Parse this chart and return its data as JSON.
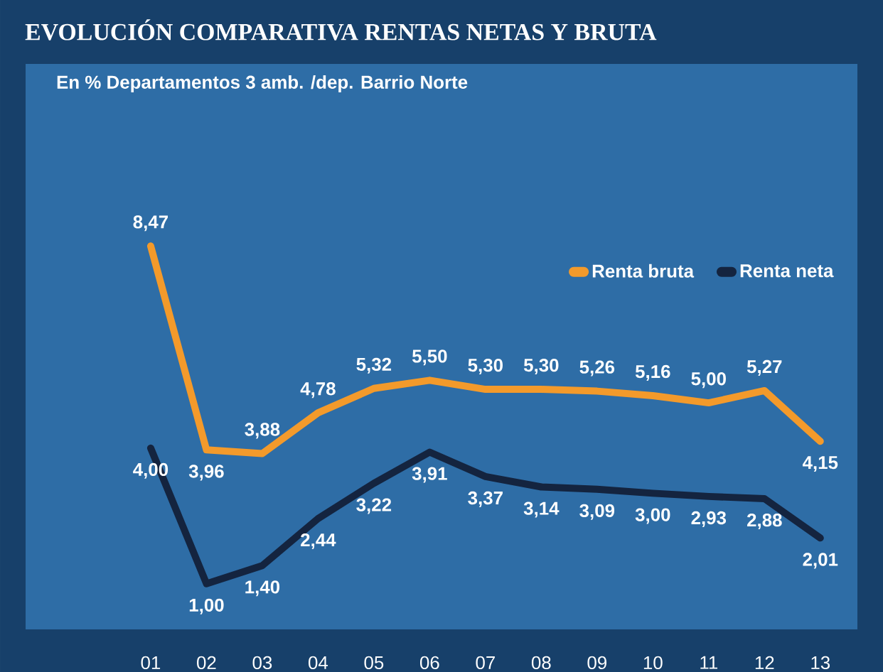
{
  "chart_data": {
    "type": "line",
    "title": "EVOLUCIÓN COMPARATIVA RENTAS NETAS Y BRUTA",
    "subtitle": "En % Departamentos 3 amb. /dep. Barrio Norte",
    "categories": [
      "01",
      "02",
      "03",
      "04",
      "05",
      "06",
      "07",
      "08",
      "09",
      "10",
      "11",
      "12",
      "13"
    ],
    "legend": "top right",
    "series": [
      {
        "name": "Renta bruta",
        "color": "#f39a2b",
        "values": [
          8.47,
          3.96,
          3.88,
          4.78,
          5.32,
          5.5,
          5.3,
          5.3,
          5.26,
          5.16,
          5.0,
          5.27,
          4.15
        ],
        "value_labels": [
          "8,47",
          "3,96",
          "3,88",
          "4,78",
          "5,32",
          "5,50",
          "5,30",
          "5,30",
          "5,26",
          "5,16",
          "5,00",
          "5,27",
          "4,15"
        ]
      },
      {
        "name": "Renta neta",
        "color": "#14243f",
        "values": [
          4.0,
          1.0,
          1.4,
          2.44,
          3.22,
          3.91,
          3.37,
          3.14,
          3.09,
          3.0,
          2.93,
          2.88,
          2.01
        ],
        "value_labels": [
          "4,00",
          "1,00",
          "1,40",
          "2,44",
          "3,22",
          "3,91",
          "3,37",
          "3,14",
          "3,09",
          "3,00",
          "2,93",
          "2,88",
          "2,01"
        ]
      }
    ]
  }
}
